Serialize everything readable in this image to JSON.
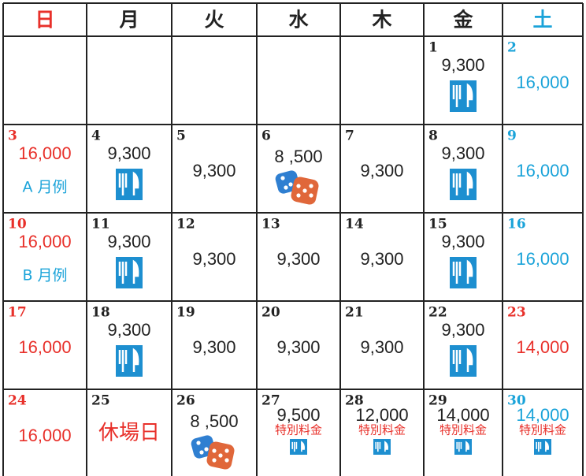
{
  "header": {
    "days": [
      "日",
      "月",
      "火",
      "水",
      "木",
      "金",
      "土"
    ],
    "colors": [
      "#e8302a",
      "#222222",
      "#222222",
      "#222222",
      "#222222",
      "#222222",
      "#1aa3d9"
    ]
  },
  "weeks": [
    [
      null,
      null,
      null,
      null,
      null,
      {
        "day": 1,
        "price": "9,300",
        "icon": "meal"
      },
      {
        "day": 2,
        "price": "16,000"
      }
    ],
    [
      {
        "day": 3,
        "price": "16,000",
        "note": "A 月例"
      },
      {
        "day": 4,
        "price": "9,300",
        "icon": "meal"
      },
      {
        "day": 5,
        "price": "9,300"
      },
      {
        "day": 6,
        "price": "8 ,500",
        "icon": "dice"
      },
      {
        "day": 7,
        "price": "9,300"
      },
      {
        "day": 8,
        "price": "9,300",
        "icon": "meal"
      },
      {
        "day": 9,
        "price": "16,000"
      }
    ],
    [
      {
        "day": 10,
        "price": "16,000",
        "note": "B 月例"
      },
      {
        "day": 11,
        "price": "9,300",
        "icon": "meal"
      },
      {
        "day": 12,
        "price": "9,300"
      },
      {
        "day": 13,
        "price": "9,300"
      },
      {
        "day": 14,
        "price": "9,300"
      },
      {
        "day": 15,
        "price": "9,300",
        "icon": "meal"
      },
      {
        "day": 16,
        "price": "16,000"
      }
    ],
    [
      {
        "day": 17,
        "price": "16,000"
      },
      {
        "day": 18,
        "price": "9,300",
        "icon": "meal"
      },
      {
        "day": 19,
        "price": "9,300"
      },
      {
        "day": 20,
        "price": "9,300"
      },
      {
        "day": 21,
        "price": "9,300"
      },
      {
        "day": 22,
        "price": "9,300",
        "icon": "meal"
      },
      {
        "day": 23,
        "price": "14,000",
        "color": "#e8302a"
      }
    ],
    [
      {
        "day": 24,
        "price": "16,000"
      },
      {
        "day": 25,
        "closed": "休場日"
      },
      {
        "day": 26,
        "price": "8 ,500",
        "icon": "dice"
      },
      {
        "day": 27,
        "price": "9,500",
        "note": "特別料金",
        "icon": "meal"
      },
      {
        "day": 28,
        "price": "12,000",
        "note": "特別料金",
        "icon": "meal"
      },
      {
        "day": 29,
        "price": "14,000",
        "note": "特別料金",
        "icon": "meal"
      },
      {
        "day": 30,
        "price": "14,000",
        "note": "特別料金",
        "icon": "meal"
      }
    ]
  ]
}
